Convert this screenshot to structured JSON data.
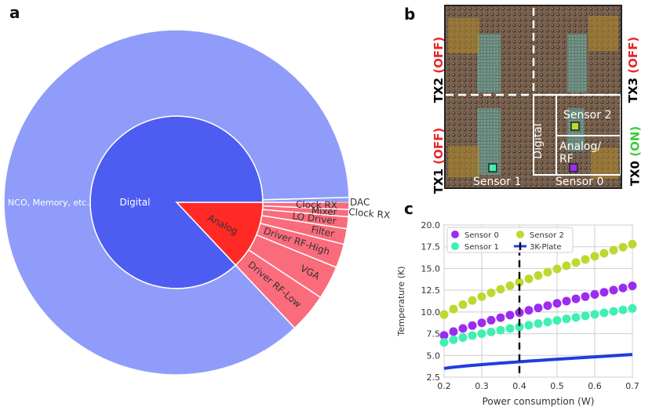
{
  "panels": {
    "a": "a",
    "b": "b",
    "c": "c"
  },
  "colors": {
    "outer_digital": "#8f9cf9",
    "inner_digital": "#4d5df2",
    "inner_analog": "#ff2a25",
    "outer_analog": "#fa6b7c",
    "sensor0": "#9b2cf0",
    "sensor1": "#40f0b2",
    "sensor2": "#bcd930",
    "plate": "#1f3de0"
  },
  "chip": {
    "tx_labels": [
      {
        "name": "TX2",
        "state": "(OFF)",
        "on": false
      },
      {
        "name": "TX3",
        "state": "(OFF)",
        "on": false
      },
      {
        "name": "TX1",
        "state": "(OFF)",
        "on": false
      },
      {
        "name": "TX0",
        "state": "(ON)",
        "on": true
      }
    ],
    "region_digital": "Digital",
    "region_analog": "Analog/",
    "region_rf": "RF",
    "sensor_labels": [
      "Sensor 0",
      "Sensor 1",
      "Sensor 2"
    ]
  },
  "chart_data": [
    {
      "type": "sunburst",
      "inner": [
        {
          "label": "Digital",
          "value": 87
        },
        {
          "label": "Analog",
          "value": 13
        }
      ],
      "outer": [
        {
          "label": "NCO, Memory, etc.",
          "value": 75,
          "parent": "Digital"
        },
        {
          "label": "DAC",
          "value": 0.4,
          "parent": "Digital"
        },
        {
          "label": "Clock RX",
          "value": 0.6,
          "parent": "Analog"
        },
        {
          "label": "Mixer",
          "value": 0.6,
          "parent": "Analog"
        },
        {
          "label": "LO Driver",
          "value": 1.0,
          "parent": "Analog"
        },
        {
          "label": "Filter",
          "value": 1.3,
          "parent": "Analog"
        },
        {
          "label": "Driver RF-High",
          "value": 2.0,
          "parent": "Analog"
        },
        {
          "label": "VGA",
          "value": 2.8,
          "parent": "Analog"
        },
        {
          "label": "Driver RF-Low",
          "value": 3.3,
          "parent": "Analog"
        }
      ]
    },
    {
      "type": "scatter",
      "xlabel": "Power consumption (W)",
      "ylabel": "Temperature (K)",
      "xlim": [
        0.2,
        0.7
      ],
      "ylim": [
        2.5,
        20.0
      ],
      "xticks": [
        "0.2",
        "0.3",
        "0.4",
        "0.5",
        "0.6",
        "0.7"
      ],
      "yticks": [
        "2.5",
        "5.0",
        "7.5",
        "10.0",
        "12.5",
        "15.0",
        "17.5",
        "20.0"
      ],
      "vline_x": 0.4,
      "series": [
        {
          "name": "Sensor 0",
          "color_key": "sensor0",
          "y_start": 7.3,
          "y_end": 13.0
        },
        {
          "name": "Sensor 2",
          "color_key": "sensor2",
          "y_start": 9.7,
          "y_end": 17.8
        },
        {
          "name": "Sensor 1",
          "color_key": "sensor1",
          "y_start": 6.5,
          "y_end": 10.4
        },
        {
          "name": "3K-Plate",
          "color_key": "plate",
          "line": true,
          "y_start": 3.5,
          "y_end": 5.1
        }
      ],
      "points_per_series": 21
    }
  ]
}
